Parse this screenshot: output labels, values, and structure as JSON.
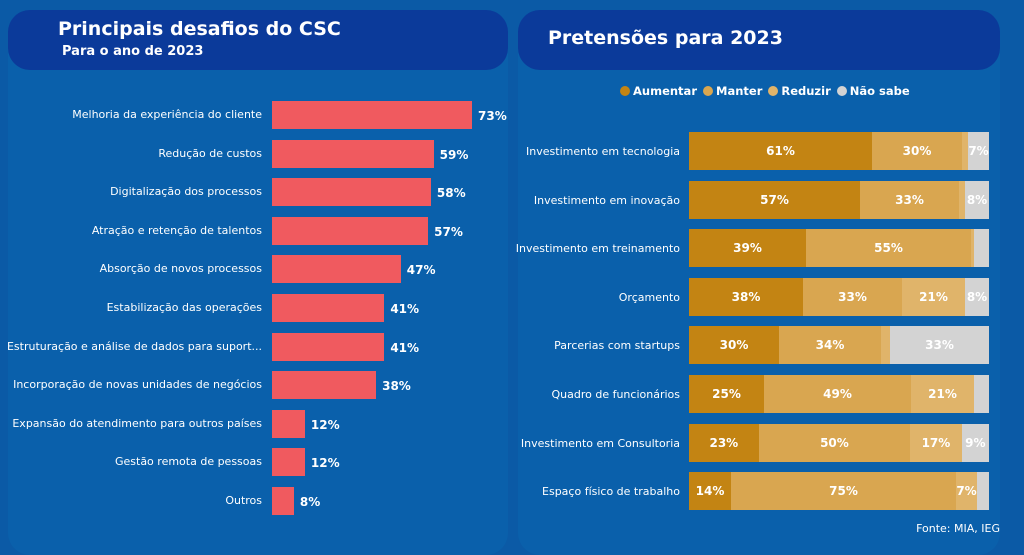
{
  "colors": {
    "bar": "#f05a5f",
    "aumentar": "#c38413",
    "manter": "#d9a650",
    "reduzir": "#e0b46a",
    "nao_sabe": "#d3d3d3"
  },
  "source": "Fonte: MIA, IEG",
  "chart_data": [
    {
      "type": "bar",
      "orientation": "horizontal",
      "title": "Principais desafios do CSC",
      "subtitle": "Para o ano de 2023",
      "categories": [
        "Melhoria da experiência do cliente",
        "Redução de custos",
        "Digitalização dos processos",
        "Atração e retenção de talentos",
        "Absorção de novos processos",
        "Estabilização das operações",
        "Estruturação e análise de dados para suport...",
        "Incorporação de novas unidades de negócios",
        "Expansão do atendimento para outros países",
        "Gestão remota de pessoas",
        "Outros"
      ],
      "values": [
        73,
        59,
        58,
        57,
        47,
        41,
        41,
        38,
        12,
        12,
        8
      ],
      "labels": [
        "73%",
        "59%",
        "58%",
        "57%",
        "47%",
        "41%",
        "41%",
        "38%",
        "12%",
        "12%",
        "8%"
      ]
    },
    {
      "type": "bar",
      "orientation": "horizontal",
      "stacked": true,
      "title": "Pretensões para 2023",
      "legend_position": "top",
      "categories": [
        "Investimento em tecnologia",
        "Investimento em inovação",
        "Investimento em treinamento",
        "Orçamento",
        "Parcerias com startups",
        "Quadro de funcionários",
        "Investimento em Consultoria",
        "Espaço físico de trabalho"
      ],
      "series": [
        {
          "name": "Aumentar",
          "values": [
            61,
            57,
            39,
            38,
            30,
            25,
            23,
            14
          ],
          "labels": [
            "61%",
            "57%",
            "39%",
            "38%",
            "30%",
            "25%",
            "23%",
            "14%"
          ]
        },
        {
          "name": "Manter",
          "values": [
            30,
            33,
            55,
            33,
            34,
            49,
            50,
            75
          ],
          "labels": [
            "30%",
            "33%",
            "55%",
            "33%",
            "34%",
            "49%",
            "50%",
            "75%"
          ]
        },
        {
          "name": "Reduzir",
          "values": [
            2,
            2,
            1,
            21,
            3,
            21,
            17,
            7
          ],
          "labels": [
            "",
            "",
            "",
            "21%",
            "",
            "21%",
            "17%",
            "7%"
          ]
        },
        {
          "name": "Não sabe",
          "values": [
            7,
            8,
            5,
            8,
            33,
            5,
            9,
            4
          ],
          "labels": [
            "7%",
            "8%",
            "",
            "8%",
            "33%",
            "",
            "9%",
            ""
          ]
        }
      ]
    }
  ]
}
